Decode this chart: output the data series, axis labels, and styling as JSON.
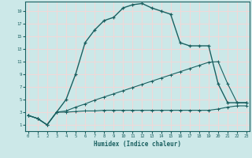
{
  "xlabel": "Humidex (Indice chaleur)",
  "bg_color": "#cce8e8",
  "grid_color": "#f0d8d8",
  "line_color": "#1a6060",
  "x_main": [
    0,
    1,
    2,
    3,
    4,
    5,
    6,
    7,
    8,
    9,
    10,
    11,
    12,
    13,
    14,
    15,
    16,
    17,
    18,
    19,
    20,
    21,
    22,
    23
  ],
  "y_main": [
    2.5,
    2.0,
    1.0,
    3.0,
    5.0,
    9.0,
    14.0,
    16.0,
    17.5,
    18.0,
    19.5,
    20.0,
    20.2,
    19.5,
    19.0,
    18.5,
    14.0,
    13.5,
    13.5,
    13.5,
    7.5,
    4.5,
    4.5,
    4.5
  ],
  "x_line2": [
    0,
    1,
    2,
    3,
    4,
    5,
    6,
    7,
    8,
    9,
    10,
    11,
    12,
    13,
    14,
    15,
    16,
    17,
    18,
    19,
    20,
    21,
    22,
    23
  ],
  "y_line2": [
    2.5,
    2.0,
    1.0,
    3.0,
    3.2,
    3.8,
    4.3,
    4.9,
    5.4,
    5.9,
    6.4,
    6.9,
    7.4,
    7.9,
    8.4,
    8.9,
    9.4,
    9.9,
    10.4,
    10.9,
    11.0,
    7.5,
    4.5,
    4.5
  ],
  "x_line3": [
    0,
    1,
    2,
    3,
    4,
    5,
    6,
    7,
    8,
    9,
    10,
    11,
    12,
    13,
    14,
    15,
    16,
    17,
    18,
    19,
    20,
    21,
    22,
    23
  ],
  "y_line3": [
    2.5,
    2.0,
    1.0,
    3.0,
    3.0,
    3.1,
    3.2,
    3.2,
    3.3,
    3.3,
    3.3,
    3.3,
    3.3,
    3.3,
    3.3,
    3.3,
    3.3,
    3.3,
    3.3,
    3.3,
    3.5,
    3.8,
    4.0,
    4.0
  ],
  "xlim": [
    0,
    23
  ],
  "ylim": [
    0,
    20
  ],
  "yticks": [
    1,
    3,
    5,
    7,
    9,
    11,
    13,
    15,
    17,
    19
  ],
  "xticks": [
    0,
    1,
    2,
    3,
    4,
    5,
    6,
    7,
    8,
    9,
    10,
    11,
    12,
    13,
    14,
    15,
    16,
    17,
    18,
    19,
    20,
    21,
    22,
    23
  ]
}
